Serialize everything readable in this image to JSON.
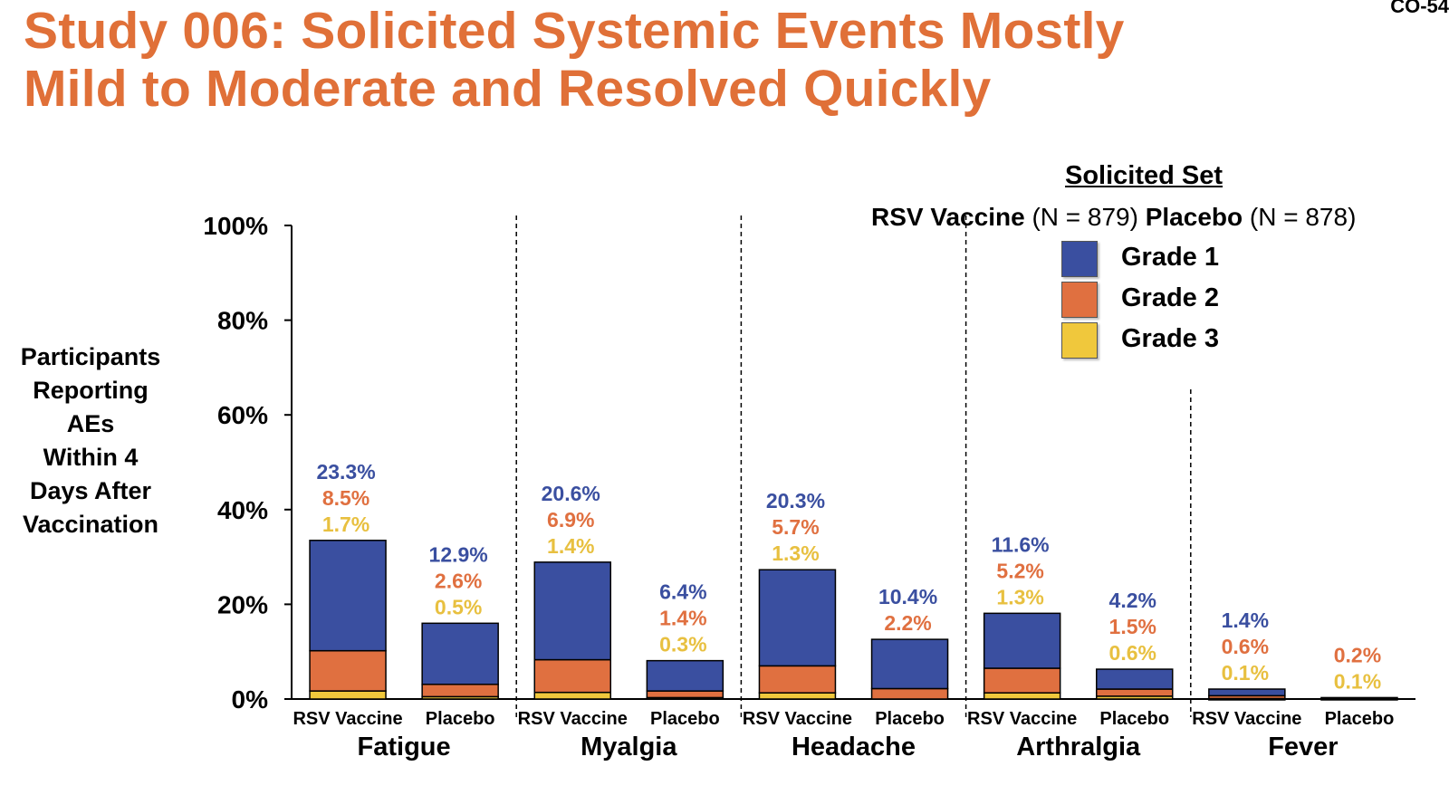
{
  "slide_id": "CO-54",
  "title_lines": [
    "Study 006: Solicited Systemic Events Mostly",
    "Mild to Moderate and Resolved Quickly"
  ],
  "y_axis_title_lines": [
    "Participants",
    "Reporting",
    "AEs",
    "Within 4",
    "Days After",
    "Vaccination"
  ],
  "legend": {
    "title": "Solicited Set",
    "vaccine_label": "RSV Vaccine",
    "vaccine_n": "(N = 879)",
    "placebo_label": "Placebo",
    "placebo_n": "(N = 878)",
    "items": [
      {
        "label": "Grade 1",
        "color": "#3a4fa0"
      },
      {
        "label": "Grade 2",
        "color": "#e07040"
      },
      {
        "label": "Grade 3",
        "color": "#f0c83c"
      }
    ]
  },
  "colors": {
    "grade1": "#3a4fa0",
    "grade2": "#e07040",
    "grade3": "#f0c83c",
    "grade1_text": "#3a4fa0",
    "grade2_text": "#e07040",
    "grade3_text": "#e8c040",
    "title": "#e07038"
  },
  "chart_data": {
    "type": "bar",
    "stacked": true,
    "ylim": [
      0,
      100
    ],
    "yticks": [
      "0%",
      "20%",
      "40%",
      "60%",
      "80%",
      "100%"
    ],
    "groups": [
      {
        "name": "Fatigue",
        "bars": [
          {
            "label": "RSV Vaccine",
            "grade1": 23.3,
            "grade2": 8.5,
            "grade3": 1.7,
            "labels": [
              "23.3%",
              "8.5%",
              "1.7%"
            ]
          },
          {
            "label": "Placebo",
            "grade1": 12.9,
            "grade2": 2.6,
            "grade3": 0.5,
            "labels": [
              "12.9%",
              "2.6%",
              "0.5%"
            ]
          }
        ]
      },
      {
        "name": "Myalgia",
        "bars": [
          {
            "label": "RSV Vaccine",
            "grade1": 20.6,
            "grade2": 6.9,
            "grade3": 1.4,
            "labels": [
              "20.6%",
              "6.9%",
              "1.4%"
            ]
          },
          {
            "label": "Placebo",
            "grade1": 6.4,
            "grade2": 1.4,
            "grade3": 0.3,
            "labels": [
              "6.4%",
              "1.4%",
              "0.3%"
            ]
          }
        ]
      },
      {
        "name": "Headache",
        "bars": [
          {
            "label": "RSV Vaccine",
            "grade1": 20.3,
            "grade2": 5.7,
            "grade3": 1.3,
            "labels": [
              "20.3%",
              "5.7%",
              "1.3%"
            ]
          },
          {
            "label": "Placebo",
            "grade1": 10.4,
            "grade2": 2.2,
            "grade3": 0,
            "labels": [
              "10.4%",
              "2.2%"
            ]
          }
        ]
      },
      {
        "name": "Arthralgia",
        "bars": [
          {
            "label": "RSV Vaccine",
            "grade1": 11.6,
            "grade2": 5.2,
            "grade3": 1.3,
            "labels": [
              "11.6%",
              "5.2%",
              "1.3%"
            ]
          },
          {
            "label": "Placebo",
            "grade1": 4.2,
            "grade2": 1.5,
            "grade3": 0.6,
            "labels": [
              "4.2%",
              "1.5%",
              "0.6%"
            ]
          }
        ]
      },
      {
        "name": "Fever",
        "bars": [
          {
            "label": "RSV Vaccine",
            "grade1": 1.4,
            "grade2": 0.6,
            "grade3": 0.1,
            "labels": [
              "1.4%",
              "0.6%",
              "0.1%"
            ]
          },
          {
            "label": "Placebo",
            "grade1": 0,
            "grade2": 0.2,
            "grade3": 0.1,
            "labels": [
              "0.2%",
              "0.1%"
            ]
          }
        ]
      }
    ]
  }
}
